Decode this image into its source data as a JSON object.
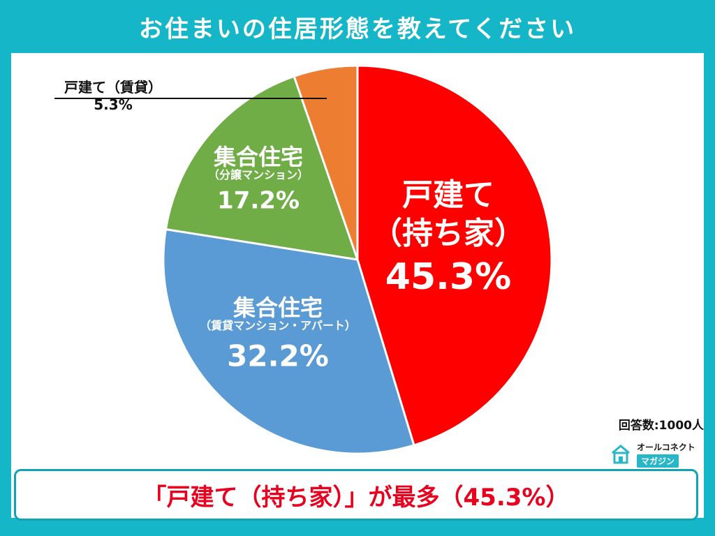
{
  "title": "お住まいの住居形態を教えてください",
  "sample_label": "回答数:1000人",
  "brand": {
    "top": "オールコネクト",
    "bottom": "マガジン"
  },
  "conclusion": "「戸建て（持ち家）」が最多（45.3%）",
  "chart_data": {
    "type": "pie",
    "slices": [
      {
        "lines": [
          "戸建て",
          "（持ち家）"
        ],
        "value": 45.3,
        "value_label": "45.3%",
        "color": "#ff0000"
      },
      {
        "lines": [
          "集合住宅",
          "（賃貸マンション・アパート）"
        ],
        "value": 32.2,
        "value_label": "32.2%",
        "color": "#5b9bd5"
      },
      {
        "lines": [
          "集合住宅",
          "（分譲マンション）"
        ],
        "value": 17.2,
        "value_label": "17.2%",
        "color": "#70ad47"
      },
      {
        "lines": [
          "戸建て（賃貸）"
        ],
        "value": 5.3,
        "value_label": "5.3%",
        "color": "#ed7d31"
      }
    ],
    "start": "top",
    "direction": "clockwise"
  }
}
